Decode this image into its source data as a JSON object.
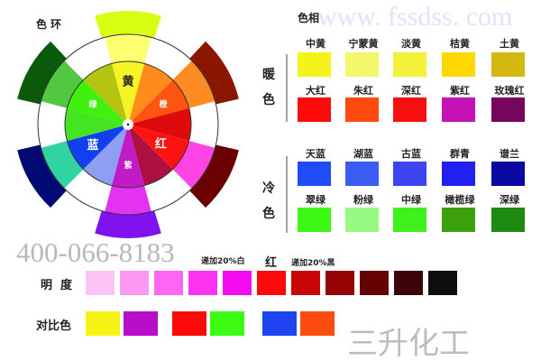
{
  "wheel": {
    "title": "色环",
    "labels": {
      "yellow": "黄",
      "orange": "橙",
      "red": "红",
      "purple": "紫",
      "blue": "蓝",
      "green": "绿"
    },
    "inner_colors": [
      "#f6f424",
      "#ff8c1c",
      "#ff5510",
      "#dd0b0b",
      "#ff1212",
      "#ad0f40",
      "#c21ac6",
      "#8e9ef0",
      "#1240f0",
      "#44e422",
      "#42f010",
      "#b4c410"
    ],
    "middle_petals": [
      "#ffff72",
      "#ff8c22",
      "#ff44e4",
      "#e232f2",
      "#30d4a0",
      "#52c842"
    ],
    "outer_petals": [
      "#d8ff12",
      "#8a1600",
      "#6a0000",
      "#8012f0",
      "#000a72",
      "#0a5a0a"
    ]
  },
  "hue": {
    "title": "色相",
    "warm_label": [
      "暖",
      "色"
    ],
    "cool_label": [
      "冷",
      "色"
    ],
    "rows": [
      [
        {
          "name": "中黄",
          "color": "#f4f41c"
        },
        {
          "name": "宁蒙黄",
          "color": "#f6f66c"
        },
        {
          "name": "淡黄",
          "color": "#f2f23a"
        },
        {
          "name": "桔黄",
          "color": "#ffd800"
        },
        {
          "name": "土黄",
          "color": "#d2b810"
        }
      ],
      [
        {
          "name": "大红",
          "color": "#ff0a0a"
        },
        {
          "name": "朱红",
          "color": "#ff4a10"
        },
        {
          "name": "深红",
          "color": "#f81010"
        },
        {
          "name": "紫红",
          "color": "#c412b4"
        },
        {
          "name": "玫瑰红",
          "color": "#76065e"
        }
      ],
      [
        {
          "name": "天蓝",
          "color": "#1e4cf6"
        },
        {
          "name": "湖蓝",
          "color": "#3a5cf4"
        },
        {
          "name": "古蓝",
          "color": "#3c44f4"
        },
        {
          "name": "群青",
          "color": "#2020f0"
        },
        {
          "name": "谱兰",
          "color": "#0a0aa0"
        }
      ],
      [
        {
          "name": "翠绿",
          "color": "#3cf814"
        },
        {
          "name": "粉绿",
          "color": "#98fa82"
        },
        {
          "name": "中绿",
          "color": "#3ef01c"
        },
        {
          "name": "橄榄绿",
          "color": "#3ca00c"
        },
        {
          "name": "深绿",
          "color": "#1e8a12"
        }
      ]
    ]
  },
  "brightness": {
    "label": "明  度",
    "white_note": "递加20%白",
    "base": "红",
    "black_note": "递加20%黑",
    "colors": [
      "#fcc4f4",
      "#fc98f0",
      "#fc66f2",
      "#fc34f2",
      "#f20af0",
      "#fc0a0a",
      "#c80606",
      "#940404",
      "#660202",
      "#3a0408",
      "#0e0e0e"
    ]
  },
  "contrast": {
    "label": "对比色",
    "pairs": [
      [
        "#f6f414",
        "#b80eca"
      ],
      [
        "#fc0a0a",
        "#3cfc14"
      ],
      [
        "#1c44f0",
        "#fc4c10"
      ]
    ]
  },
  "watermarks": {
    "phone": "400-066-8183",
    "company": "三升化工",
    "site": "www. fssdss. com"
  }
}
